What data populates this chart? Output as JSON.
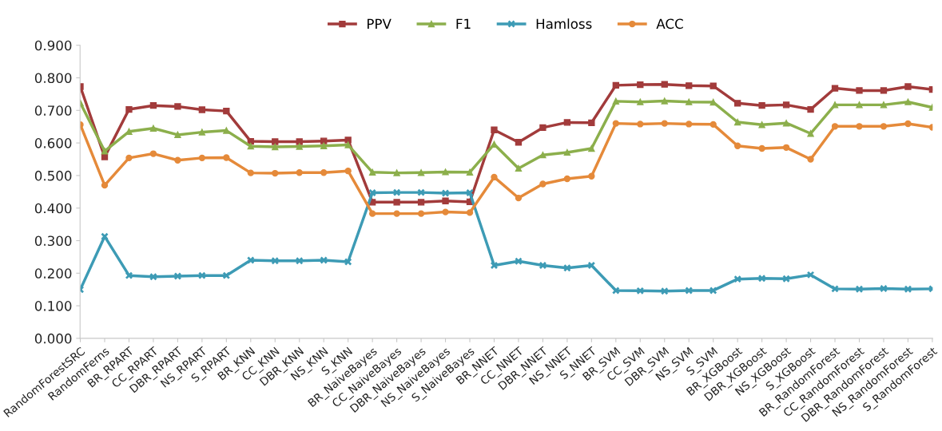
{
  "chart_data": {
    "type": "line",
    "categories": [
      "RandomForestSRC",
      "RandomFerns",
      "BR_RPART",
      "CC_RPART",
      "DBR_RPART",
      "NS_RPART",
      "S_RPART",
      "BR_KNN",
      "CC_KNN",
      "DBR_KNN",
      "NS_KNN",
      "S_KNN",
      "BR_NaiveBayes",
      "CC_NaiveBayes",
      "DBR_NaiveBayes",
      "NS_NaiveBayes",
      "S_NaiveBayes",
      "BR_NNET",
      "CC_NNET",
      "DBR_NNET",
      "NS_NNET",
      "S_NNET",
      "BR_SVM",
      "CC_SVM",
      "DBR_SVM",
      "NS_SVM",
      "S_SVM",
      "BR_XGBoost",
      "DBR_XGBoost",
      "NS_XGBoost",
      "S_XGBoost",
      "BR_RandomForest",
      "CC_RandomForest",
      "DBR_RandomForest",
      "NS_RandomForest",
      "S_RandomForest"
    ],
    "series": [
      {
        "name": "PPV",
        "color": "#a23b3b",
        "marker": "square",
        "values": [
          0.773,
          0.557,
          0.703,
          0.715,
          0.712,
          0.702,
          0.698,
          0.605,
          0.604,
          0.604,
          0.606,
          0.609,
          0.418,
          0.418,
          0.418,
          0.422,
          0.419,
          0.64,
          0.602,
          0.647,
          0.663,
          0.662,
          0.777,
          0.779,
          0.78,
          0.776,
          0.775,
          0.722,
          0.715,
          0.717,
          0.703,
          0.768,
          0.761,
          0.761,
          0.773,
          0.764
        ]
      },
      {
        "name": "F1",
        "color": "#8caf4c",
        "marker": "triangle",
        "values": [
          0.723,
          0.575,
          0.635,
          0.645,
          0.625,
          0.633,
          0.638,
          0.59,
          0.588,
          0.589,
          0.591,
          0.594,
          0.51,
          0.508,
          0.509,
          0.511,
          0.51,
          0.596,
          0.522,
          0.563,
          0.571,
          0.583,
          0.728,
          0.726,
          0.729,
          0.726,
          0.725,
          0.664,
          0.656,
          0.661,
          0.629,
          0.717,
          0.717,
          0.717,
          0.726,
          0.709
        ]
      },
      {
        "name": "Hamloss",
        "color": "#3d9bb5",
        "marker": "cross",
        "values": [
          0.15,
          0.313,
          0.193,
          0.189,
          0.191,
          0.193,
          0.193,
          0.24,
          0.238,
          0.238,
          0.24,
          0.235,
          0.447,
          0.448,
          0.448,
          0.446,
          0.447,
          0.224,
          0.237,
          0.224,
          0.216,
          0.224,
          0.147,
          0.146,
          0.145,
          0.147,
          0.147,
          0.182,
          0.184,
          0.183,
          0.195,
          0.152,
          0.151,
          0.153,
          0.151,
          0.152
        ]
      },
      {
        "name": "ACC",
        "color": "#e58a3a",
        "marker": "circle",
        "values": [
          0.656,
          0.47,
          0.554,
          0.567,
          0.547,
          0.554,
          0.555,
          0.508,
          0.507,
          0.509,
          0.509,
          0.514,
          0.383,
          0.383,
          0.383,
          0.388,
          0.386,
          0.495,
          0.431,
          0.474,
          0.49,
          0.498,
          0.66,
          0.658,
          0.66,
          0.658,
          0.657,
          0.591,
          0.583,
          0.586,
          0.55,
          0.651,
          0.651,
          0.651,
          0.659,
          0.648
        ]
      }
    ],
    "ylim": [
      0,
      0.9
    ],
    "yticks": [
      {
        "value": 0,
        "label": "0.000"
      },
      {
        "value": 0.1,
        "label": "0.100"
      },
      {
        "value": 0.2,
        "label": "0.200"
      },
      {
        "value": 0.3,
        "label": "0.300"
      },
      {
        "value": 0.4,
        "label": "0.400"
      },
      {
        "value": 0.5,
        "label": "0.500"
      },
      {
        "value": 0.6,
        "label": "0.600"
      },
      {
        "value": 0.7,
        "label": "0.700"
      },
      {
        "value": 0.8,
        "label": "0.800"
      },
      {
        "value": 0.9,
        "label": "0.900"
      }
    ],
    "grid": false,
    "legend": "top",
    "line_style": "solid"
  }
}
